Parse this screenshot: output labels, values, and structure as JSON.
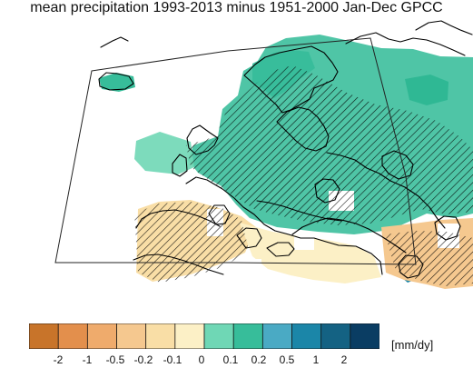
{
  "title": "mean precipitation 1993-2013 minus 1951-2000 Jan-Dec GPCC",
  "colorbar": {
    "units": "[mm/dy]",
    "ticks": [
      "-2",
      "-1",
      "-0.5",
      "-0.2",
      "-0.1",
      "0",
      "0.1",
      "0.2",
      "0.5",
      "1",
      "2"
    ],
    "colors": [
      "#c8742a",
      "#e38f4c",
      "#efab6c",
      "#f5c88f",
      "#f9dea6",
      "#fcf0c6",
      "#6fd7b5",
      "#37bd9a",
      "#4aaac4",
      "#1b86a8",
      "#146283",
      "#0a3d63"
    ]
  },
  "map": {
    "legend_meaning": {
      "hatched": "hatched areas",
      "ocean": "ocean / no data"
    },
    "colors": {
      "ocean": "#ffffff",
      "coast": "#000000",
      "box": "#222222",
      "hatch": "#000000"
    }
  }
}
